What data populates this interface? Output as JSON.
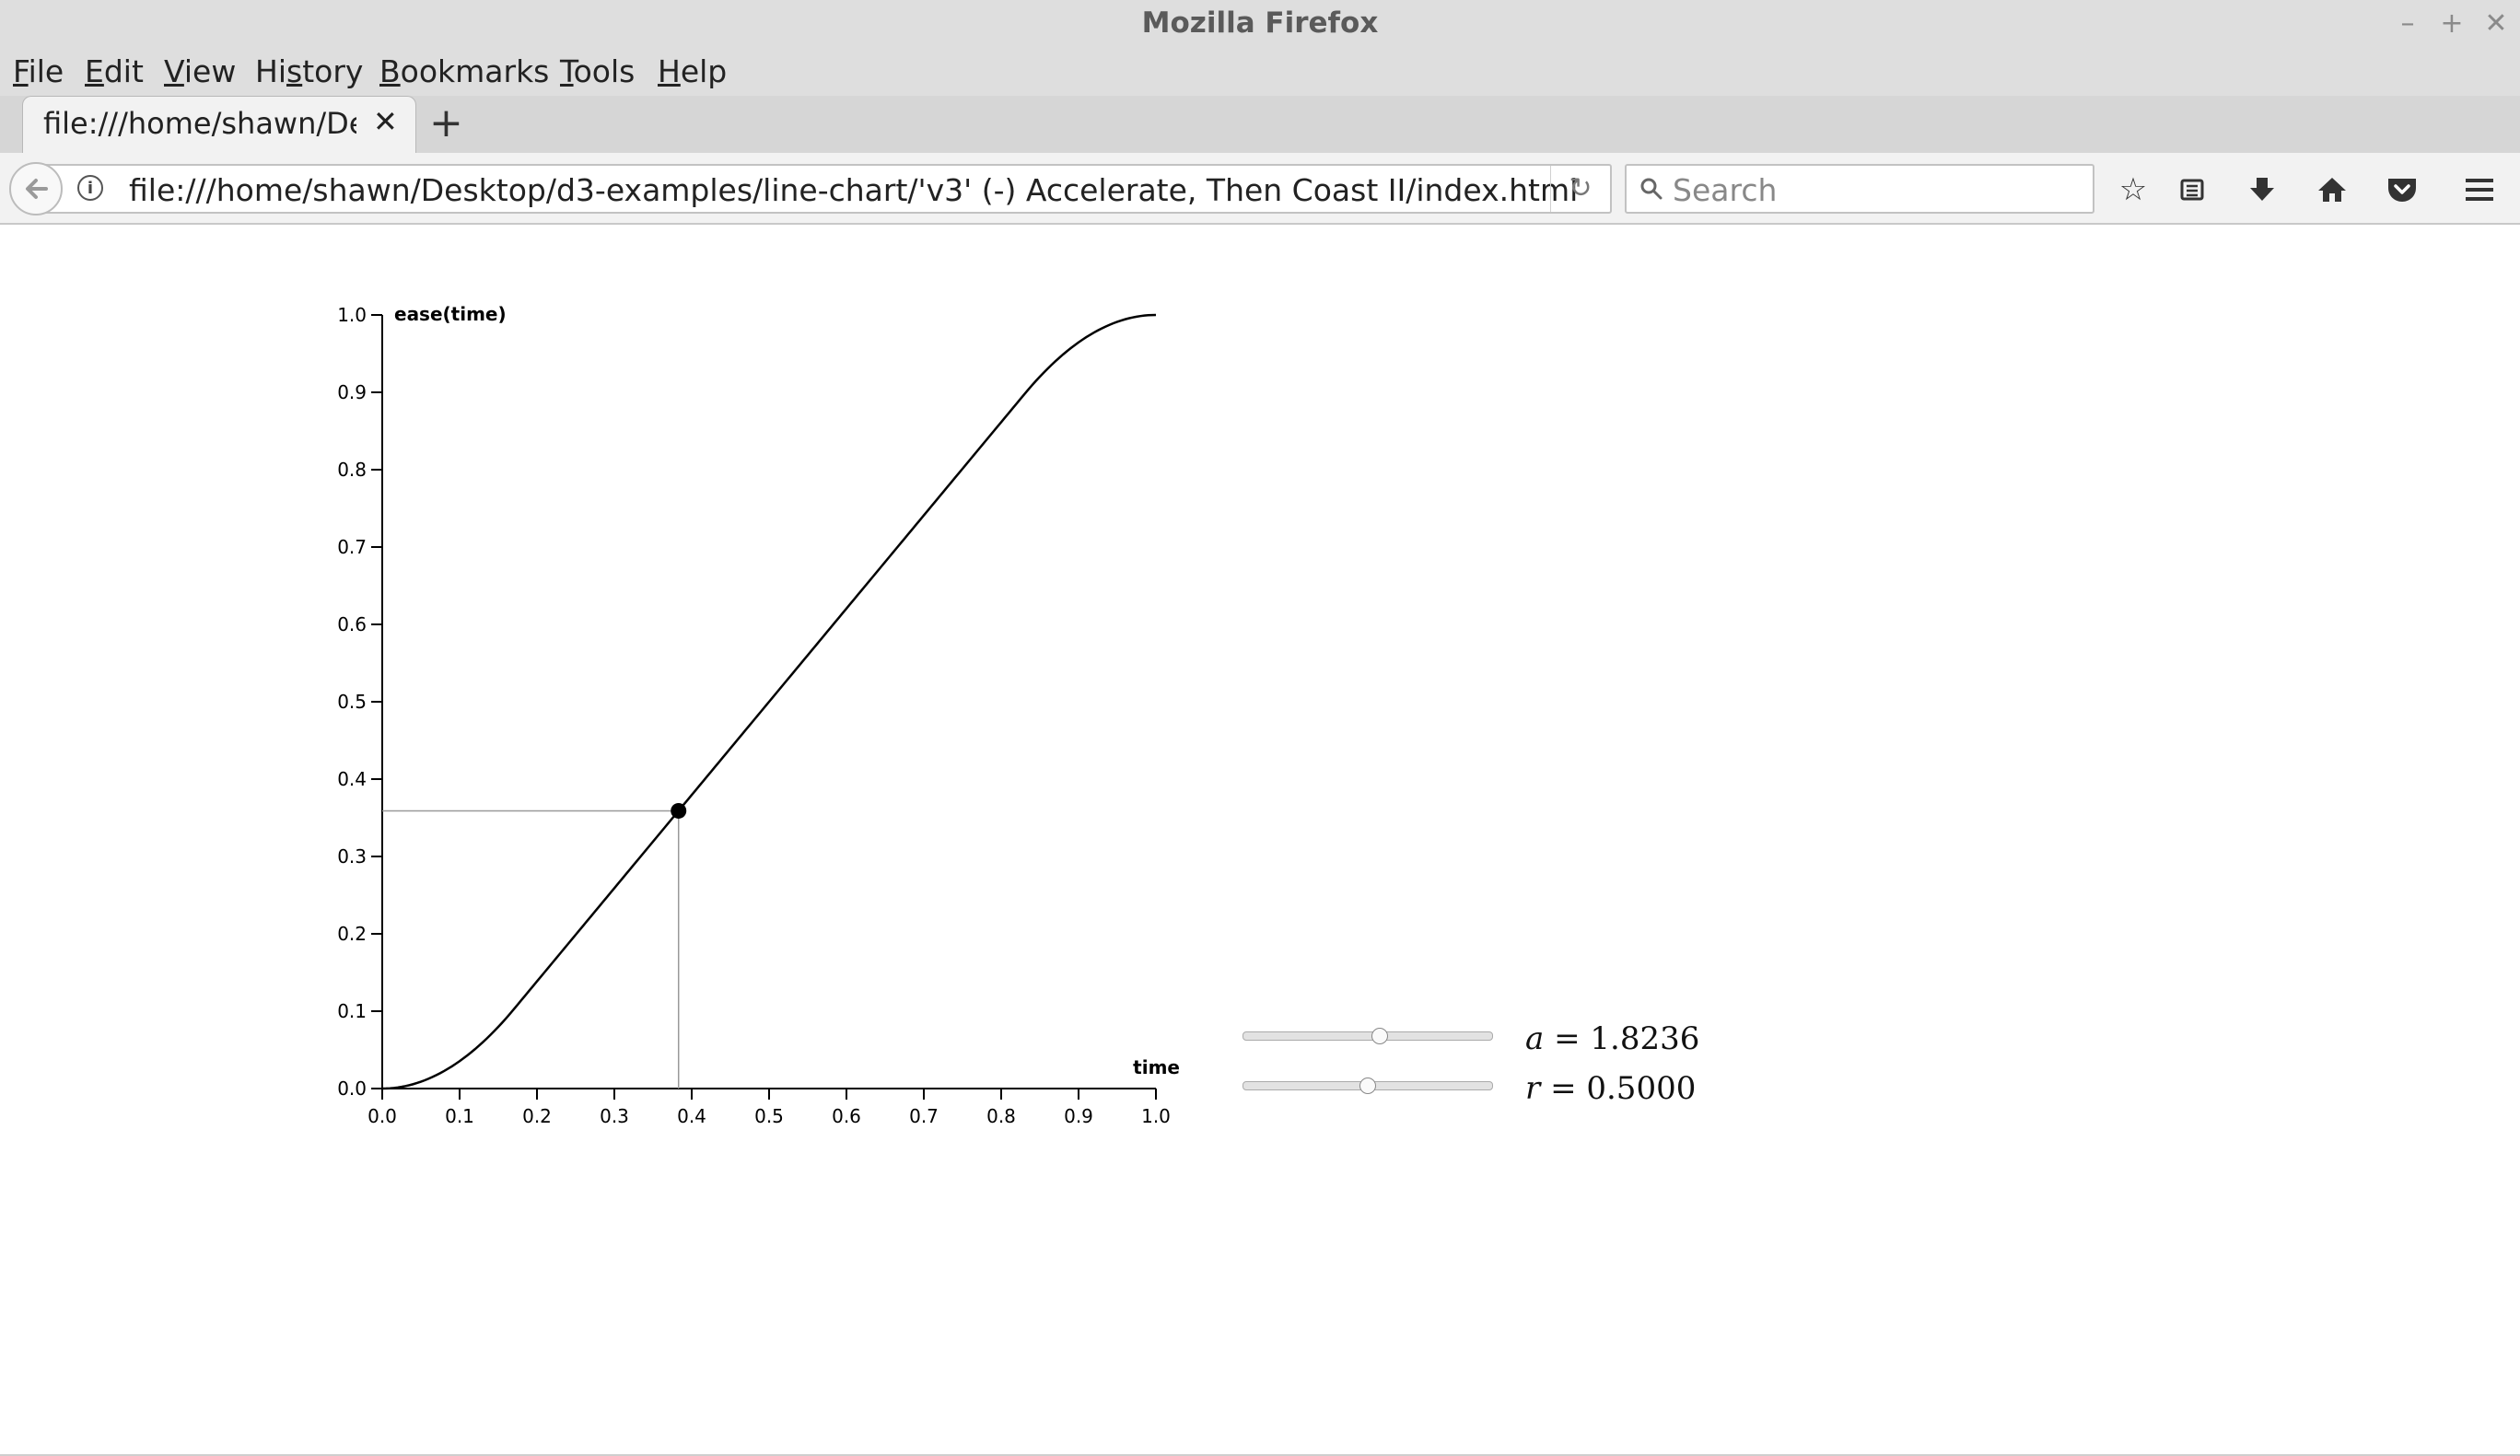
{
  "window": {
    "title": "Mozilla Firefox",
    "controls": {
      "minimize": "–",
      "maximize": "+",
      "close": "✕"
    }
  },
  "menubar": [
    {
      "label": "File",
      "accel": "F",
      "rest": "ile"
    },
    {
      "label": "Edit",
      "accel": "E",
      "rest": "dit"
    },
    {
      "label": "View",
      "accel": "V",
      "rest": "iew"
    },
    {
      "label": "History",
      "accel": "",
      "pre": "Hi",
      "accel2": "s",
      "rest": "tory"
    },
    {
      "label": "Bookmarks",
      "accel": "B",
      "rest": "ookmarks"
    },
    {
      "label": "Tools",
      "accel": "T",
      "rest": "ools"
    },
    {
      "label": "Help",
      "accel": "H",
      "rest": "elp"
    }
  ],
  "tab": {
    "title": "file:///home/shawn/Des",
    "close": "✕",
    "new_tab": "+"
  },
  "navbar": {
    "url": "file:///home/shawn/Desktop/d3-examples/line-chart/'v3' (-) Accelerate, Then Coast II/index.html",
    "search_placeholder": "Search",
    "icons": [
      "star-icon",
      "reading-list-icon",
      "download-icon",
      "home-icon",
      "pocket-icon",
      "menu-icon"
    ]
  },
  "chart_data": {
    "type": "line",
    "xlabel": "time",
    "ylabel": "ease(time)",
    "xlim": [
      0,
      1
    ],
    "ylim": [
      0,
      1
    ],
    "x_ticks": [
      "0.0",
      "0.1",
      "0.2",
      "0.3",
      "0.4",
      "0.5",
      "0.6",
      "0.7",
      "0.8",
      "0.9",
      "1.0"
    ],
    "y_ticks": [
      "0.0",
      "0.1",
      "0.2",
      "0.3",
      "0.4",
      "0.5",
      "0.6",
      "0.7",
      "0.8",
      "0.9",
      "1.0"
    ],
    "ease": {
      "a": 1.8236,
      "r": 0.5
    },
    "marker": {
      "x": 0.383,
      "y": 0.359
    }
  },
  "controls": {
    "a": {
      "name": "a",
      "label": " = 1.8236",
      "value": 0.55
    },
    "r": {
      "name": "r",
      "label": " = 0.5000",
      "value": 0.5
    }
  }
}
